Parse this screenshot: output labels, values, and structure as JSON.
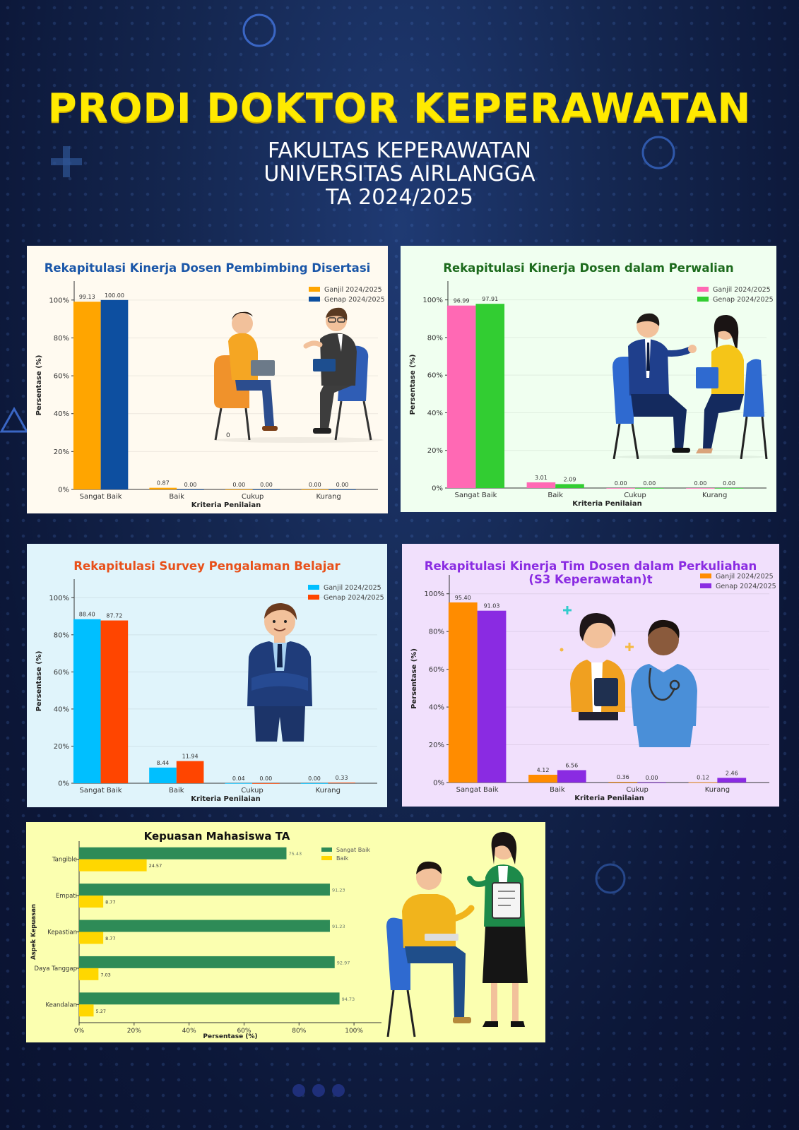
{
  "header": {
    "title": "PRODI DOKTOR KEPERAWATAN",
    "line1": "FAKULTAS KEPERAWATAN",
    "line2": "UNIVERSITAS AIRLANGGA",
    "line3": "TA 2024/2025"
  },
  "colors": {
    "title_yellow": "#ffea00",
    "background_navy": "#14264f"
  },
  "chart_data": [
    {
      "id": "pembimbing",
      "type": "bar",
      "title": "Rekapitulasi Kinerja Dosen Pembimbing Disertasi",
      "xlabel": "Kriteria Penilaian",
      "ylabel": "Persentase (%)",
      "categories": [
        "Sangat Baik",
        "Baik",
        "Cukup",
        "Kurang"
      ],
      "series": [
        {
          "name": "Ganjil 2024/2025",
          "values": [
            99.13,
            0.87,
            0.0,
            0.0
          ],
          "color": "#ffa500",
          "labels": [
            "99.13",
            "0.87",
            "0.00",
            "0.00"
          ]
        },
        {
          "name": "Genap 2024/2025",
          "values": [
            100.0,
            0.0,
            0.0,
            0.0
          ],
          "color": "#0d4fa0",
          "labels": [
            "100.00",
            "0.00",
            "0.00",
            "0.00"
          ]
        }
      ],
      "ylim": [
        0,
        110
      ],
      "yticks": [
        0,
        20,
        40,
        60,
        80,
        100
      ],
      "ytick_labels": [
        "0%",
        "20%",
        "40%",
        "60%",
        "80%",
        "100%"
      ],
      "legend": "top-right",
      "background": "#fffaf0",
      "title_color": "#1a56a8",
      "illustration": "dosen-bimbingan-illustration",
      "stray_label": "0"
    },
    {
      "id": "perwalian",
      "type": "bar",
      "title": "Rekapitulasi Kinerja Dosen dalam Perwalian",
      "xlabel": "Kriteria Penilaian",
      "ylabel": "Persentase (%)",
      "categories": [
        "Sangat Baik",
        "Baik",
        "Cukup",
        "Kurang"
      ],
      "series": [
        {
          "name": "Ganjil 2024/2025",
          "values": [
            96.99,
            3.01,
            0.0,
            0.0
          ],
          "color": "#ff69b4",
          "labels": [
            "96.99",
            "3.01",
            "0.00",
            "0.00"
          ]
        },
        {
          "name": "Genap 2024/2025",
          "values": [
            97.91,
            2.09,
            0.0,
            0.0
          ],
          "color": "#32cd32",
          "labels": [
            "97.91",
            "2.09",
            "0.00",
            "0.00"
          ]
        }
      ],
      "ylim": [
        0,
        110
      ],
      "yticks": [
        0,
        20,
        40,
        60,
        80,
        100
      ],
      "ytick_labels": [
        "0%",
        "20%",
        "40%",
        "60%",
        "80%",
        "100%"
      ],
      "legend": "top-right",
      "background": "#f0fff0",
      "title_color": "#1d6b1d",
      "illustration": "dosen-perwalian-illustration"
    },
    {
      "id": "belajar",
      "type": "bar",
      "title": "Rekapitulasi Survey Pengalaman Belajar",
      "xlabel": "Kriteria Penilaian",
      "ylabel": "Persentase (%)",
      "categories": [
        "Sangat Baik",
        "Baik",
        "Cukup",
        "Kurang"
      ],
      "series": [
        {
          "name": "Ganjil 2024/2025",
          "values": [
            88.4,
            8.44,
            0.04,
            0.0
          ],
          "color": "#00bfff",
          "labels": [
            "88.40",
            "8.44",
            "0.04",
            "0.00"
          ]
        },
        {
          "name": "Genap 2024/2025",
          "values": [
            87.72,
            11.94,
            0.0,
            0.33
          ],
          "color": "#ff4500",
          "labels": [
            "87.72",
            "11.94",
            "0.00",
            "0.33"
          ]
        }
      ],
      "ylim": [
        0,
        110
      ],
      "yticks": [
        0,
        20,
        40,
        60,
        80,
        100
      ],
      "ytick_labels": [
        "0%",
        "20%",
        "40%",
        "60%",
        "80%",
        "100%"
      ],
      "legend": "top-right",
      "background": "#e0f4fb",
      "title_color": "#e8501a",
      "illustration": "businessman-arms-crossed-illustration"
    },
    {
      "id": "perkuliahan",
      "type": "bar",
      "title": "Rekapitulasi Kinerja Tim Dosen dalam Perkuliahan",
      "title2": "(S3 Keperawatan)t",
      "xlabel": "Kriteria Penilaian",
      "ylabel": "Persentase (%)",
      "categories": [
        "Sangat Baik",
        "Baik",
        "Cukup",
        "Kurang"
      ],
      "series": [
        {
          "name": "Ganjil 2024/2025",
          "values": [
            95.4,
            4.12,
            0.36,
            0.12
          ],
          "color": "#ff8c00",
          "labels": [
            "95.40",
            "4.12",
            "0.36",
            "0.12"
          ]
        },
        {
          "name": "Genap 2024/2025",
          "values": [
            91.03,
            6.56,
            0.0,
            2.46
          ],
          "color": "#8a2be2",
          "labels": [
            "91.03",
            "6.56",
            "0.00",
            "2.46"
          ]
        }
      ],
      "ylim": [
        0,
        110
      ],
      "yticks": [
        0,
        20,
        40,
        60,
        80,
        100
      ],
      "ytick_labels": [
        "0%",
        "20%",
        "40%",
        "60%",
        "80%",
        "100%"
      ],
      "legend": "top-right",
      "background": "#f1e0fc",
      "title_color": "#8a2be2",
      "illustration": "nurses-illustration"
    },
    {
      "id": "kepuasan",
      "type": "barh",
      "title": "Kepuasan Mahasiswa TA",
      "xlabel": "Persentase (%)",
      "ylabel": "Aspek Kepuasan",
      "categories": [
        "Tangible",
        "Empati",
        "Kepastian",
        "Daya Tanggap",
        "Keandalan"
      ],
      "series": [
        {
          "name": "Sangat Baik",
          "values": [
            75.43,
            91.23,
            91.23,
            92.97,
            94.73
          ],
          "color": "#2e8b57",
          "labels": [
            "75.43",
            "91.23",
            "91.23",
            "92.97",
            "94.73"
          ]
        },
        {
          "name": "Baik",
          "values": [
            24.57,
            8.77,
            8.77,
            7.03,
            5.27
          ],
          "color": "#ffd700",
          "labels": [
            "24.57",
            "8.77",
            "8.77",
            "7.03",
            "5.27"
          ]
        }
      ],
      "xlim": [
        0,
        110
      ],
      "xticks": [
        0,
        20,
        40,
        60,
        80,
        100
      ],
      "xtick_labels": [
        "0%",
        "20%",
        "40%",
        "60%",
        "80%",
        "100%"
      ],
      "legend": "top-right",
      "background": "#fbffb0",
      "title_color": "#111111",
      "illustration": "student-consultation-illustration"
    }
  ]
}
